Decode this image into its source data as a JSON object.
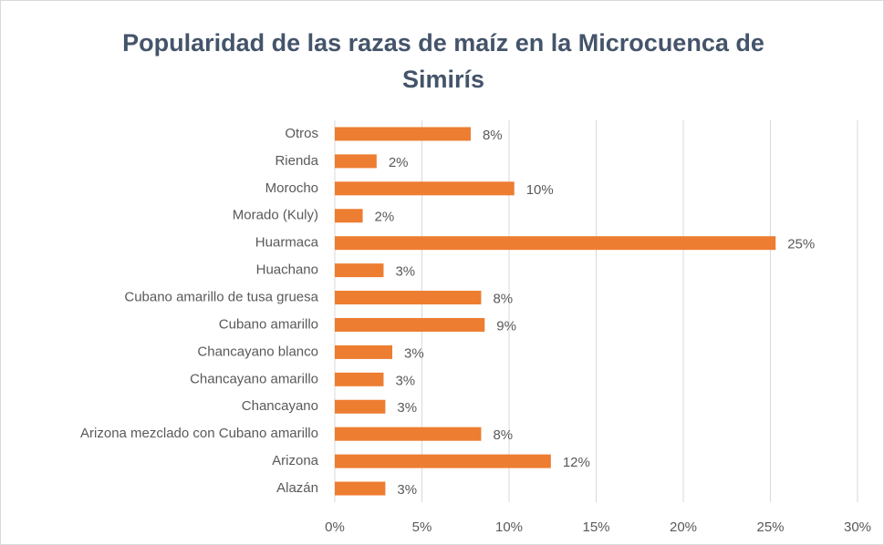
{
  "chart_data": {
    "type": "barh",
    "title": "Popularidad de las razas de maíz en la Microcuenca de Simirís",
    "categories": [
      "Otros",
      "Rienda",
      "Morocho",
      "Morado (Kuly)",
      "Huarmaca",
      "Huachano",
      "Cubano amarillo de tusa gruesa",
      "Cubano amarillo",
      "Chancayano blanco",
      "Chancayano amarillo",
      "Chancayano",
      "Arizona mezclado con Cubano amarillo",
      "Arizona",
      "Alazán"
    ],
    "values": [
      7.8,
      2.4,
      10.3,
      1.6,
      25.3,
      2.8,
      8.4,
      8.6,
      3.3,
      2.8,
      2.9,
      8.4,
      12.4,
      2.9
    ],
    "value_labels": [
      "8%",
      "2%",
      "10%",
      "2%",
      "25%",
      "3%",
      "8%",
      "9%",
      "3%",
      "3%",
      "3%",
      "8%",
      "12%",
      "3%"
    ],
    "color": "#ed7d31",
    "xlim": [
      0,
      30
    ],
    "xticks": [
      {
        "value": 0,
        "label": "0%"
      },
      {
        "value": 5,
        "label": "5%"
      },
      {
        "value": 10,
        "label": "10%"
      },
      {
        "value": 15,
        "label": "15%"
      },
      {
        "value": 20,
        "label": "20%"
      },
      {
        "value": 25,
        "label": "25%"
      },
      {
        "value": 30,
        "label": "30%"
      }
    ],
    "grid": true
  }
}
